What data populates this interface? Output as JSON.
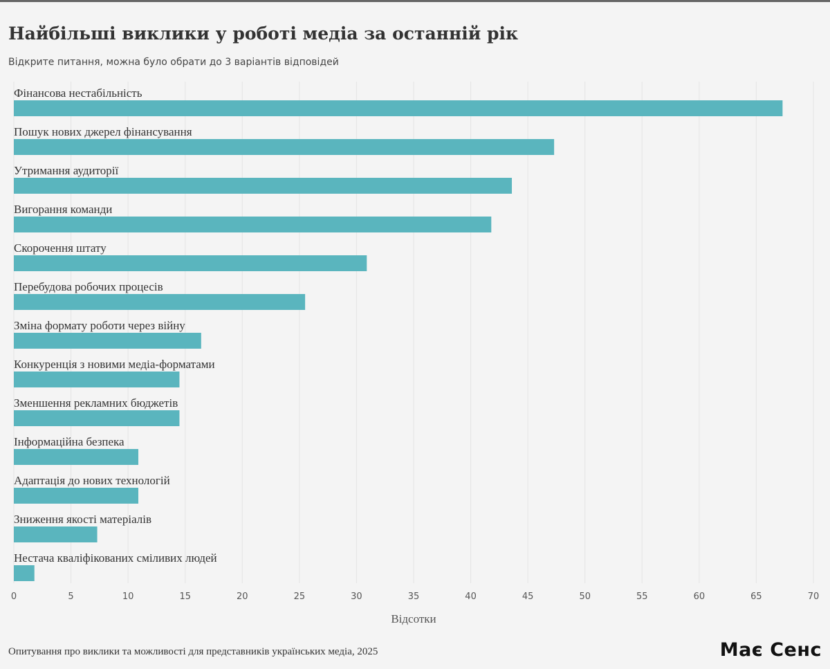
{
  "header": {
    "title": "Найбільші виклики у роботі медіа за останній рік",
    "subtitle": "Відкрите питання, можна було обрати до 3 варіантів відповідей"
  },
  "footer": {
    "source": "Опитування про виклики та можливості для представників українських медіа, 2025",
    "logo": "Має Сенс"
  },
  "colors": {
    "bar": "#5ab5be",
    "grid": "#e4e4e4",
    "background": "#f4f4f4"
  },
  "chart_data": {
    "type": "bar",
    "orientation": "horizontal",
    "categories": [
      "Фінансова нестабільність",
      "Пошук нових джерел фінансування",
      "Утримання аудиторії",
      "Вигорання команди",
      "Скорочення штату",
      "Перебудова робочих процесів",
      "Зміна формату роботи через війну",
      "Конкуренція з новими медіа-форматами",
      "Зменшення рекламних бюджетів",
      "Інформаційна безпека",
      "Адаптація до нових технологій",
      "Зниження якості матеріалів",
      "Нестача кваліфікованих сміливих людей"
    ],
    "values": [
      67.3,
      47.3,
      43.6,
      41.8,
      30.9,
      25.5,
      16.4,
      14.5,
      14.5,
      10.9,
      10.9,
      7.3,
      1.8
    ],
    "xlabel": "Відсотки",
    "xlim": [
      0,
      70
    ],
    "xticks": [
      "0",
      "5",
      "10",
      "15",
      "20",
      "25",
      "30",
      "35",
      "40",
      "45",
      "50",
      "55",
      "60",
      "65",
      "70"
    ],
    "grid": true
  }
}
